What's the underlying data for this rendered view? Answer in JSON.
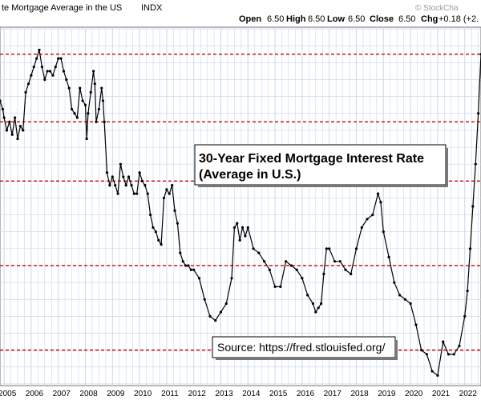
{
  "header": {
    "title": "te Mortgage Average in the US",
    "exchange": "INDX",
    "watermark": "© StockCha",
    "open_label": "Open",
    "open_value": "6.50",
    "high_label": "High",
    "high_value": "6.50",
    "low_label": "Low",
    "low_value": "6.50",
    "close_label": "Close",
    "close_value": "6.50",
    "chg_label": "Chg",
    "chg_value": "+0.18 (+2."
  },
  "annotations": {
    "title_line1": "30-Year Fixed Mortgage Interest Rate",
    "title_line2": "(Average in U.S.)",
    "source": "Source: https://fred.stlouisfed.org/"
  },
  "colors": {
    "series": "#000000",
    "reference_line": "#cc0000",
    "grid": "#c9d8ee",
    "panel_border": "#6f6f6f",
    "background": "#ffffff"
  },
  "chart_data": {
    "type": "line",
    "title": "30-Year Fixed Mortgage Interest Rate (Average in U.S.)",
    "xlabel": "",
    "ylabel": "",
    "x_tick_labels": [
      "2005",
      "2006",
      "2007",
      "2008",
      "2009",
      "2010",
      "2011",
      "2012",
      "2013",
      "2014",
      "2015",
      "2016",
      "2017",
      "2018",
      "2019",
      "2020",
      "2021",
      "2022"
    ],
    "xlim": [
      2004.85,
      2022.6
    ],
    "ylim": [
      2.58,
      6.82
    ],
    "grid": true,
    "y_scale": "linear",
    "reference_lines": [
      6.5,
      5.7,
      5.0,
      4.0,
      3.0
    ],
    "series": [
      {
        "name": "",
        "x": [
          2004.85,
          2004.95,
          2005.0,
          2005.1,
          2005.2,
          2005.3,
          2005.4,
          2005.5,
          2005.6,
          2005.7,
          2005.8,
          2005.9,
          2006.0,
          2006.1,
          2006.2,
          2006.3,
          2006.4,
          2006.5,
          2006.6,
          2006.7,
          2006.8,
          2006.9,
          2007.0,
          2007.1,
          2007.2,
          2007.3,
          2007.4,
          2007.5,
          2007.6,
          2007.7,
          2007.8,
          2007.9,
          2008.0,
          2008.05,
          2008.1,
          2008.2,
          2008.3,
          2008.35,
          2008.4,
          2008.5,
          2008.6,
          2008.65,
          2008.7,
          2008.8,
          2008.9,
          2009.0,
          2009.1,
          2009.2,
          2009.3,
          2009.4,
          2009.5,
          2009.6,
          2009.7,
          2009.8,
          2009.9,
          2010.0,
          2010.1,
          2010.2,
          2010.3,
          2010.4,
          2010.5,
          2010.6,
          2010.7,
          2010.8,
          2010.9,
          2011.0,
          2011.1,
          2011.2,
          2011.3,
          2011.4,
          2011.5,
          2011.6,
          2011.7,
          2011.8,
          2011.9,
          2012.0,
          2012.2,
          2012.4,
          2012.6,
          2012.8,
          2013.0,
          2013.2,
          2013.4,
          2013.5,
          2013.6,
          2013.7,
          2013.8,
          2013.9,
          2014.0,
          2014.2,
          2014.4,
          2014.6,
          2014.8,
          2015.0,
          2015.2,
          2015.4,
          2015.6,
          2015.8,
          2016.0,
          2016.2,
          2016.4,
          2016.5,
          2016.6,
          2016.7,
          2016.8,
          2016.9,
          2017.0,
          2017.2,
          2017.4,
          2017.6,
          2017.8,
          2018.0,
          2018.2,
          2018.4,
          2018.6,
          2018.8,
          2018.9,
          2019.0,
          2019.2,
          2019.4,
          2019.6,
          2019.8,
          2020.0,
          2020.2,
          2020.4,
          2020.6,
          2020.8,
          2021.0,
          2021.2,
          2021.4,
          2021.6,
          2021.8,
          2022.0,
          2022.1,
          2022.2,
          2022.3,
          2022.4,
          2022.5,
          2022.6
        ],
        "y": [
          5.95,
          5.85,
          5.75,
          5.6,
          5.7,
          5.55,
          5.75,
          5.5,
          5.65,
          5.6,
          6.05,
          6.15,
          6.25,
          6.35,
          6.45,
          6.55,
          6.35,
          6.2,
          6.3,
          6.3,
          6.25,
          6.35,
          6.45,
          6.45,
          6.3,
          6.2,
          6.1,
          5.85,
          5.8,
          5.75,
          6.1,
          5.95,
          5.9,
          5.5,
          5.8,
          6.05,
          6.3,
          6.15,
          5.7,
          5.85,
          6.1,
          5.95,
          5.7,
          5.1,
          4.95,
          5.05,
          4.95,
          4.85,
          5.2,
          5.05,
          4.95,
          5.05,
          4.95,
          4.85,
          4.85,
          5.1,
          5.0,
          4.95,
          4.85,
          4.6,
          4.45,
          4.4,
          4.3,
          4.25,
          4.8,
          4.9,
          4.85,
          4.95,
          4.65,
          4.5,
          4.15,
          4.05,
          4.0,
          4.0,
          3.95,
          3.95,
          3.85,
          3.6,
          3.4,
          3.35,
          3.45,
          3.55,
          3.85,
          4.45,
          4.5,
          4.3,
          4.45,
          4.35,
          4.45,
          4.2,
          4.15,
          4.05,
          3.95,
          3.75,
          3.75,
          4.05,
          4.0,
          3.95,
          3.85,
          3.65,
          3.55,
          3.45,
          3.5,
          3.55,
          3.9,
          4.2,
          4.2,
          4.05,
          4.05,
          3.95,
          3.9,
          4.2,
          4.45,
          4.55,
          4.6,
          4.85,
          4.75,
          4.4,
          4.1,
          3.8,
          3.65,
          3.6,
          3.55,
          3.3,
          3.0,
          2.95,
          2.75,
          2.7,
          3.1,
          2.95,
          2.95,
          3.05,
          3.4,
          3.7,
          4.2,
          4.7,
          5.2,
          5.8,
          6.5
        ]
      }
    ]
  }
}
